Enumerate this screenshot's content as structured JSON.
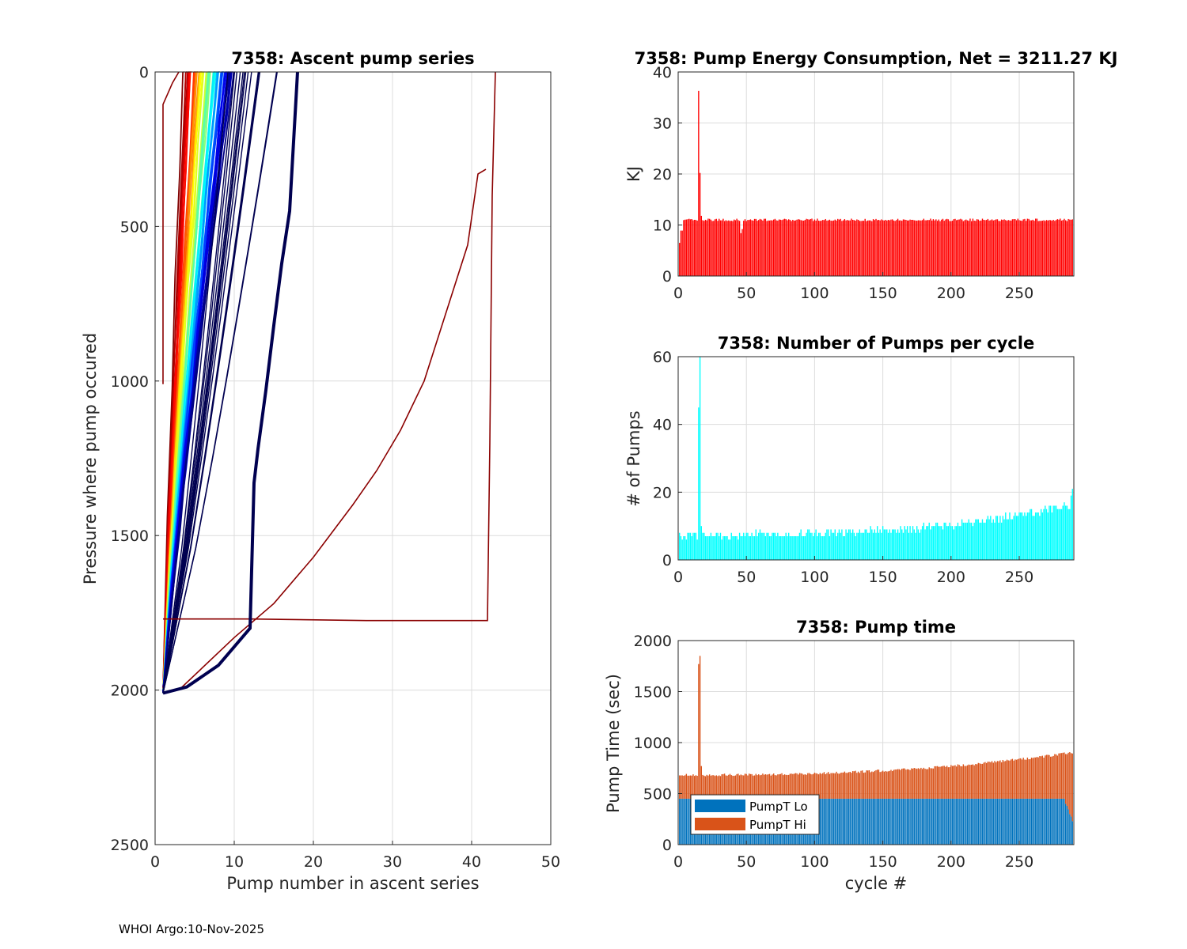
{
  "footer": "WHOI Argo:10-Nov-2025",
  "colors": {
    "grid": "#dcdcdc",
    "energy_bar": "#ff0000",
    "pumps_bar": "#00ffff",
    "pumpt_lo": "#0072bd",
    "pumpt_hi": "#d95319",
    "deep_red": "#8b0000",
    "navy": "#000050"
  },
  "chart_data": [
    {
      "id": "ascent",
      "type": "line",
      "title": "7358: Ascent pump series",
      "xlabel": "Pump number in ascent series",
      "ylabel": "Pressure where pump occured",
      "xlim": [
        0,
        50
      ],
      "ylim": [
        0,
        2500
      ],
      "y_reversed": true,
      "xticks": [
        0,
        10,
        20,
        30,
        40,
        50
      ],
      "yticks": [
        0,
        500,
        1000,
        1500,
        2000,
        2500
      ],
      "grid": true,
      "colormap": "jet (early cycles red, later cycles blue/navy)",
      "family": {
        "count": 60,
        "start_pressure": 2010,
        "end_pump_min": 3.5,
        "end_pump_max": 9.5
      },
      "highlight_series": [
        {
          "name": "anomalous-cycle",
          "color": "#8b0000",
          "x": [
            1,
            12,
            26.7,
            42,
            42.3,
            42.6,
            43
          ],
          "y": [
            1770,
            1770,
            1775,
            1775,
            1200,
            400,
            0
          ]
        },
        {
          "name": "long-ascent",
          "color": "#8b0000",
          "x": [
            3,
            10,
            15,
            20,
            25,
            28,
            31,
            34,
            37,
            39.5,
            40.8,
            41.8
          ],
          "y": [
            2000,
            1830,
            1720,
            1570,
            1400,
            1290,
            1160,
            1000,
            760,
            560,
            330,
            315
          ]
        },
        {
          "name": "thick-late-cycle",
          "color": "#000050",
          "x": [
            1,
            4,
            8,
            12,
            12.5,
            13,
            14,
            15,
            16,
            17,
            18
          ],
          "y": [
            2010,
            1990,
            1920,
            1800,
            1330,
            1220,
            1030,
            820,
            620,
            450,
            0
          ]
        },
        {
          "name": "early-low-cycle",
          "color": "#8b0000",
          "x": [
            1,
            1,
            1.6,
            2.2,
            3
          ],
          "y": [
            1010,
            105,
            70,
            35,
            0
          ]
        }
      ]
    },
    {
      "id": "energy",
      "type": "bar",
      "title": "7358: Pump Energy Consumption,  Net = 3211.27 KJ",
      "xlabel": "",
      "ylabel": "KJ",
      "xlim": [
        0,
        290
      ],
      "ylim": [
        0,
        40
      ],
      "xticks": [
        0,
        50,
        100,
        150,
        200,
        250
      ],
      "yticks": [
        0,
        10,
        20,
        30,
        40
      ],
      "grid": true,
      "n_cycles": 289,
      "baseline_value": 11.0,
      "spikes": [
        {
          "cycle": 15,
          "value": 36.3
        },
        {
          "cycle": 16,
          "value": 20.2
        },
        {
          "cycle": 17,
          "value": 11.8
        },
        {
          "cycle": 46,
          "value": 8.4
        },
        {
          "cycle": 47,
          "value": 9.2
        },
        {
          "cycle": 1,
          "value": 6.5
        },
        {
          "cycle": 2,
          "value": 8.9
        },
        {
          "cycle": 3,
          "value": 8.9
        }
      ]
    },
    {
      "id": "pumps",
      "type": "bar",
      "title": "7358: Number of Pumps per cycle",
      "xlabel": "",
      "ylabel": "# of Pumps",
      "xlim": [
        0,
        290
      ],
      "ylim": [
        0,
        60
      ],
      "xticks": [
        0,
        50,
        100,
        150,
        200,
        250
      ],
      "yticks": [
        0,
        20,
        40,
        60
      ],
      "grid": true,
      "n_cycles": 289,
      "baseline_start": 7,
      "baseline_end": 16,
      "spikes": [
        {
          "cycle": 15,
          "value": 45
        },
        {
          "cycle": 16,
          "value": 60
        },
        {
          "cycle": 17,
          "value": 10
        },
        {
          "cycle": 288,
          "value": 19
        },
        {
          "cycle": 289,
          "value": 21
        }
      ]
    },
    {
      "id": "pumptime",
      "type": "bar",
      "stacked": true,
      "title": "7358: Pump time",
      "xlabel": "cycle #",
      "ylabel": "Pump Time (sec)",
      "xlim": [
        0,
        290
      ],
      "ylim": [
        0,
        2000
      ],
      "xticks": [
        0,
        50,
        100,
        150,
        200,
        250
      ],
      "yticks": [
        0,
        500,
        1000,
        1500,
        2000
      ],
      "grid": true,
      "legend": {
        "position": "bottom-left",
        "entries": [
          "PumpT Lo",
          "PumpT Hi"
        ]
      },
      "n_cycles": 289,
      "lo_value": 450,
      "lo_tail": [
        {
          "cycle": 284,
          "value": 400
        },
        {
          "cycle": 287,
          "value": 300
        },
        {
          "cycle": 289,
          "value": 230
        }
      ],
      "total_start": 680,
      "total_end": 900,
      "spikes": [
        {
          "cycle": 15,
          "value": 1770
        },
        {
          "cycle": 16,
          "value": 1850
        },
        {
          "cycle": 17,
          "value": 770
        }
      ]
    }
  ]
}
